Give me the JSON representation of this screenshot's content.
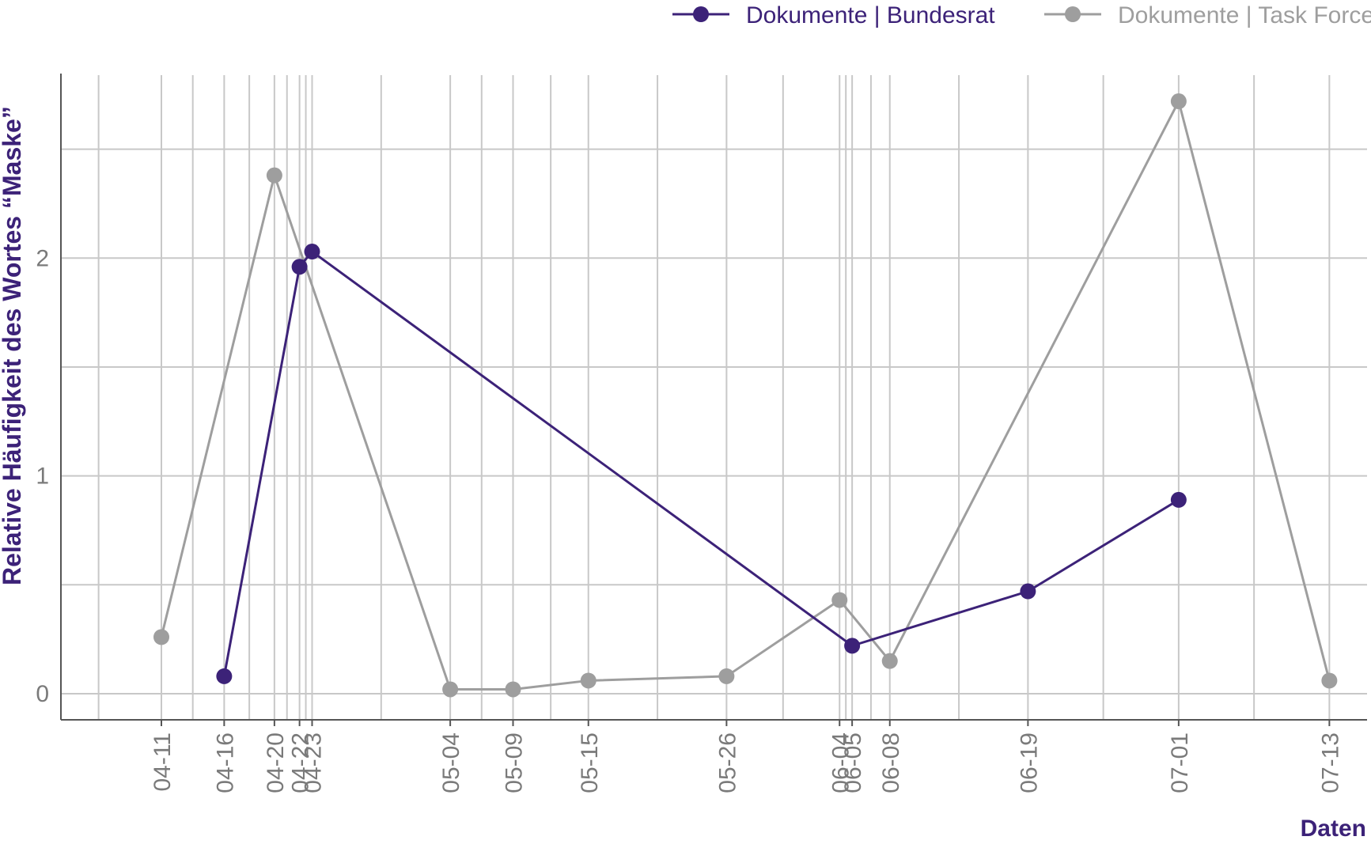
{
  "chart_data": {
    "type": "line",
    "xlabel": "Daten",
    "ylabel": "Relative Häufigkeit des Wortes  “Maske”",
    "ylim": [
      -0.12,
      2.84
    ],
    "yticks": [
      0,
      1,
      2
    ],
    "x_date_range": [
      "2020-04-03",
      "2020-07-16"
    ],
    "x_ticks": [
      "04-11",
      "04-16",
      "04-20",
      "04-22",
      "04-23",
      "05-04",
      "05-09",
      "05-15",
      "05-26",
      "06-04",
      "06-05",
      "06-08",
      "06-19",
      "07-01",
      "07-13"
    ],
    "grid": true,
    "legend_position": "top-right",
    "series": [
      {
        "name": "Dokumente | Bundesrat",
        "color": "#3c2278",
        "points": [
          {
            "x": "04-16",
            "y": 0.08
          },
          {
            "x": "04-22",
            "y": 1.96
          },
          {
            "x": "04-23",
            "y": 2.03
          },
          {
            "x": "06-05",
            "y": 0.22
          },
          {
            "x": "06-19",
            "y": 0.47
          },
          {
            "x": "07-01",
            "y": 0.89
          }
        ]
      },
      {
        "name": "Dokumente | Task Force",
        "color": "#9e9e9e",
        "points": [
          {
            "x": "04-11",
            "y": 0.26
          },
          {
            "x": "04-20",
            "y": 2.38
          },
          {
            "x": "05-04",
            "y": 0.02
          },
          {
            "x": "05-09",
            "y": 0.02
          },
          {
            "x": "05-15",
            "y": 0.06
          },
          {
            "x": "05-26",
            "y": 0.08
          },
          {
            "x": "06-04",
            "y": 0.43
          },
          {
            "x": "06-08",
            "y": 0.15
          },
          {
            "x": "07-01",
            "y": 2.72
          },
          {
            "x": "07-13",
            "y": 0.06
          }
        ]
      }
    ]
  },
  "colors": {
    "grid": "#c8c8c8",
    "axis": "#555555",
    "title_accent": "#3c2278"
  }
}
